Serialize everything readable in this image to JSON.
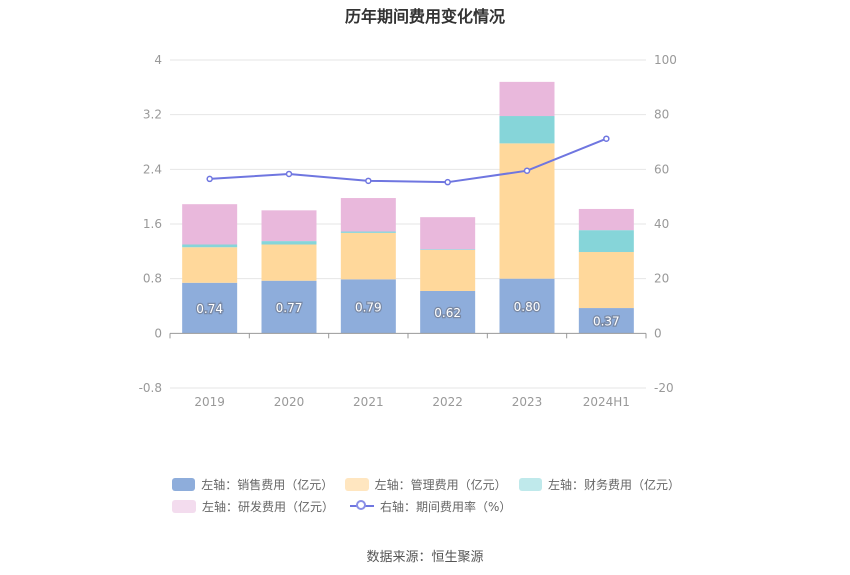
{
  "chart_data": {
    "type": "bar",
    "title": "历年期间费用变化情况",
    "categories": [
      "2019",
      "2020",
      "2021",
      "2022",
      "2023",
      "2024H1"
    ],
    "left_axis": {
      "ylim": [
        -0.8,
        4
      ],
      "ticks": [
        "4",
        "3.2",
        "2.4",
        "1.6",
        "0.8",
        "0",
        "-0.8"
      ]
    },
    "right_axis": {
      "ylim": [
        -20,
        100
      ],
      "ticks": [
        "100",
        "80",
        "60",
        "40",
        "20",
        "0",
        "-20"
      ]
    },
    "stacked": true,
    "series": [
      {
        "name": "左轴：销售费用（亿元）",
        "axis": "left",
        "color": "#8eaddb",
        "values": [
          0.74,
          0.77,
          0.79,
          0.62,
          0.8,
          0.37
        ],
        "labels": [
          "0.74",
          "0.77",
          "0.79",
          "0.62",
          "0.80",
          "0.37"
        ]
      },
      {
        "name": "左轴：管理费用（亿元）",
        "axis": "left",
        "color": "#ffd89b",
        "values": [
          0.52,
          0.53,
          0.68,
          0.6,
          1.98,
          0.82
        ]
      },
      {
        "name": "左轴：财务费用（亿元）",
        "axis": "left",
        "color": "#86d5d9",
        "values": [
          0.04,
          0.05,
          0.02,
          0.01,
          0.4,
          0.32
        ]
      },
      {
        "name": "左轴：研发费用（亿元）",
        "axis": "left",
        "color": "#e9b8dc",
        "values": [
          0.59,
          0.45,
          0.49,
          0.47,
          0.5,
          0.31
        ]
      },
      {
        "name": "右轴：期间费用率（%）",
        "axis": "right",
        "type": "line",
        "color": "#6f76e0",
        "values": [
          56.5,
          58.3,
          55.8,
          55.3,
          59.5,
          71.2
        ]
      }
    ],
    "legend": "bottom",
    "grid": true
  },
  "source": "数据来源：恒生聚源"
}
